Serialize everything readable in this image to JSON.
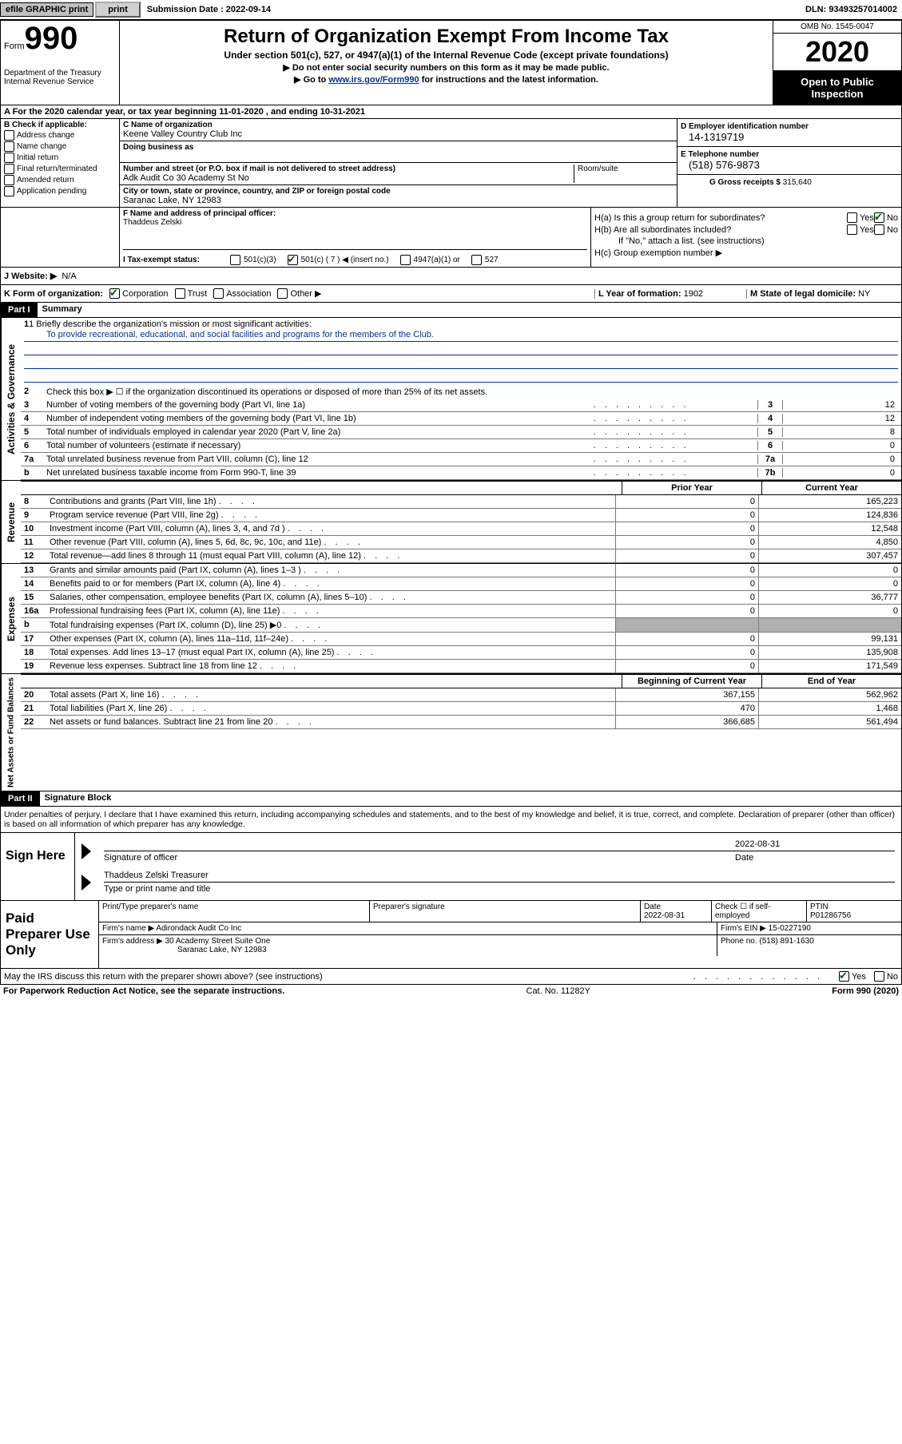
{
  "topbar": {
    "efile": "efile GRAPHIC print",
    "submission_label": "Submission Date :",
    "submission_date": "2022-09-14",
    "dln_label": "DLN:",
    "dln": "93493257014002"
  },
  "header": {
    "form_word": "Form",
    "form_num": "990",
    "dept": "Department of the Treasury Internal Revenue Service",
    "title": "Return of Organization Exempt From Income Tax",
    "subtitle": "Under section 501(c), 527, or 4947(a)(1) of the Internal Revenue Code (except private foundations)",
    "arrow1": "▶ Do not enter social security numbers on this form as it may be made public.",
    "arrow2_pre": "▶ Go to ",
    "arrow2_link": "www.irs.gov/Form990",
    "arrow2_post": " for instructions and the latest information.",
    "omb": "OMB No. 1545-0047",
    "year": "2020",
    "open_public": "Open to Public Inspection"
  },
  "line_a": "A   For the 2020 calendar year, or tax year beginning 11-01-2020    , and ending 10-31-2021",
  "box_b": {
    "label": "B Check if applicable:",
    "items": [
      "Address change",
      "Name change",
      "Initial return",
      "Final return/terminated",
      "Amended return",
      "Application pending"
    ]
  },
  "box_c": {
    "lbl_name": "C Name of organization",
    "org_name": "Keene Valley Country Club Inc",
    "lbl_dba": "Doing business as",
    "lbl_addr": "Number and street (or P.O. box if mail is not delivered to street address)",
    "addr": "Adk Audit Co 30 Academy St No",
    "room": "Room/suite",
    "lbl_city": "City or town, state or province, country, and ZIP or foreign postal code",
    "city": "Saranac Lake, NY  12983"
  },
  "box_d": {
    "lbl": "D Employer identification number",
    "val": "14-1319719"
  },
  "box_e": {
    "lbl": "E Telephone number",
    "val": "(518) 576-9873"
  },
  "box_g": {
    "lbl": "G Gross receipts $",
    "val": "315,640"
  },
  "box_f": {
    "lbl": "F Name and address of principal officer:",
    "val": "Thaddeus Zelski"
  },
  "box_h": {
    "ha": "H(a)  Is this a group return for subordinates?",
    "hb": "H(b)  Are all subordinates included?",
    "hb_note": "If \"No,\" attach a list. (see instructions)",
    "hc": "H(c)  Group exemption number ▶",
    "yes": "Yes",
    "no": "No"
  },
  "box_i": {
    "lbl": "I    Tax-exempt status:",
    "o1": "501(c)(3)",
    "o2": "501(c) ( 7 ) ◀ (insert no.)",
    "o3": "4947(a)(1) or",
    "o4": "527"
  },
  "box_j": {
    "lbl": "J   Website: ▶",
    "val": "N/A"
  },
  "box_k": {
    "lbl": "K Form of organization:",
    "o1": "Corporation",
    "o2": "Trust",
    "o3": "Association",
    "o4": "Other ▶"
  },
  "box_l": {
    "lbl": "L Year of formation:",
    "val": "1902"
  },
  "box_m": {
    "lbl": "M State of legal domicile:",
    "val": "NY"
  },
  "part1": {
    "head": "Part I",
    "title": "Summary"
  },
  "summary": {
    "q1_lbl": "1   Briefly describe the organization's mission or most significant activities:",
    "q1_val": "To provide recreational, educational, and social facilities and programs for the members of the Club.",
    "q2": "Check this box ▶ ☐  if the organization discontinued its operations or disposed of more than 25% of its net assets.",
    "rows_ag": [
      {
        "n": "3",
        "t": "Number of voting members of the governing body (Part VI, line 1a)",
        "cn": "3",
        "v": "12"
      },
      {
        "n": "4",
        "t": "Number of independent voting members of the governing body (Part VI, line 1b)",
        "cn": "4",
        "v": "12"
      },
      {
        "n": "5",
        "t": "Total number of individuals employed in calendar year 2020 (Part V, line 2a)",
        "cn": "5",
        "v": "8"
      },
      {
        "n": "6",
        "t": "Total number of volunteers (estimate if necessary)",
        "cn": "6",
        "v": "0"
      },
      {
        "n": "7a",
        "t": "Total unrelated business revenue from Part VIII, column (C), line 12",
        "cn": "7a",
        "v": "0"
      },
      {
        "n": "b",
        "t": "Net unrelated business taxable income from Form 990-T, line 39",
        "cn": "7b",
        "v": "0"
      }
    ],
    "col_prior": "Prior Year",
    "col_current": "Current Year",
    "revenue": [
      {
        "n": "8",
        "t": "Contributions and grants (Part VIII, line 1h)",
        "p": "0",
        "c": "165,223"
      },
      {
        "n": "9",
        "t": "Program service revenue (Part VIII, line 2g)",
        "p": "0",
        "c": "124,836"
      },
      {
        "n": "10",
        "t": "Investment income (Part VIII, column (A), lines 3, 4, and 7d )",
        "p": "0",
        "c": "12,548"
      },
      {
        "n": "11",
        "t": "Other revenue (Part VIII, column (A), lines 5, 6d, 8c, 9c, 10c, and 11e)",
        "p": "0",
        "c": "4,850"
      },
      {
        "n": "12",
        "t": "Total revenue—add lines 8 through 11 (must equal Part VIII, column (A), line 12)",
        "p": "0",
        "c": "307,457"
      }
    ],
    "expenses": [
      {
        "n": "13",
        "t": "Grants and similar amounts paid (Part IX, column (A), lines 1–3 )",
        "p": "0",
        "c": "0"
      },
      {
        "n": "14",
        "t": "Benefits paid to or for members (Part IX, column (A), line 4)",
        "p": "0",
        "c": "0"
      },
      {
        "n": "15",
        "t": "Salaries, other compensation, employee benefits (Part IX, column (A), lines 5–10)",
        "p": "0",
        "c": "36,777"
      },
      {
        "n": "16a",
        "t": "Professional fundraising fees (Part IX, column (A), line 11e)",
        "p": "0",
        "c": "0"
      },
      {
        "n": "b",
        "t": "Total fundraising expenses (Part IX, column (D), line 25) ▶0",
        "p": "shaded",
        "c": "shaded"
      },
      {
        "n": "17",
        "t": "Other expenses (Part IX, column (A), lines 11a–11d, 11f–24e)",
        "p": "0",
        "c": "99,131"
      },
      {
        "n": "18",
        "t": "Total expenses. Add lines 13–17 (must equal Part IX, column (A), line 25)",
        "p": "0",
        "c": "135,908"
      },
      {
        "n": "19",
        "t": "Revenue less expenses. Subtract line 18 from line 12",
        "p": "0",
        "c": "171,549"
      }
    ],
    "col_begin": "Beginning of Current Year",
    "col_end": "End of Year",
    "netassets": [
      {
        "n": "20",
        "t": "Total assets (Part X, line 16)",
        "p": "367,155",
        "c": "562,962"
      },
      {
        "n": "21",
        "t": "Total liabilities (Part X, line 26)",
        "p": "470",
        "c": "1,468"
      },
      {
        "n": "22",
        "t": "Net assets or fund balances. Subtract line 21 from line 20",
        "p": "366,685",
        "c": "561,494"
      }
    ]
  },
  "vlabels": {
    "ag": "Activities & Governance",
    "rev": "Revenue",
    "exp": "Expenses",
    "na": "Net Assets or Fund Balances"
  },
  "part2": {
    "head": "Part II",
    "title": "Signature Block"
  },
  "perjury": "Under penalties of perjury, I declare that I have examined this return, including accompanying schedules and statements, and to the best of my knowledge and belief, it is true, correct, and complete. Declaration of preparer (other than officer) is based on all information of which preparer has any knowledge.",
  "sign": {
    "left": "Sign Here",
    "sig_officer": "Signature of officer",
    "date_lbl": "Date",
    "date_val": "2022-08-31",
    "name": "Thaddeus Zelski  Treasurer",
    "name_lbl": "Type or print name and title"
  },
  "preparer": {
    "left": "Paid Preparer Use Only",
    "h_name": "Print/Type preparer's name",
    "h_sig": "Preparer's signature",
    "h_date": "Date",
    "h_date_val": "2022-08-31",
    "h_check": "Check ☐ if self-employed",
    "h_ptin": "PTIN",
    "ptin": "P01286756",
    "firm_name_lbl": "Firm's name      ▶",
    "firm_name": "Adirondack Audit Co Inc",
    "firm_ein_lbl": "Firm's EIN ▶",
    "firm_ein": "15-0227190",
    "firm_addr_lbl": "Firm's address ▶",
    "firm_addr1": "30 Academy Street Suite One",
    "firm_addr2": "Saranac Lake, NY  12983",
    "phone_lbl": "Phone no.",
    "phone": "(518) 891-1630"
  },
  "discuss": {
    "text": "May the IRS discuss this return with the preparer shown above? (see instructions)",
    "yes": "Yes",
    "no": "No"
  },
  "footer": {
    "left": "For Paperwork Reduction Act Notice, see the separate instructions.",
    "mid": "Cat. No. 11282Y",
    "right": "Form 990 (2020)"
  }
}
